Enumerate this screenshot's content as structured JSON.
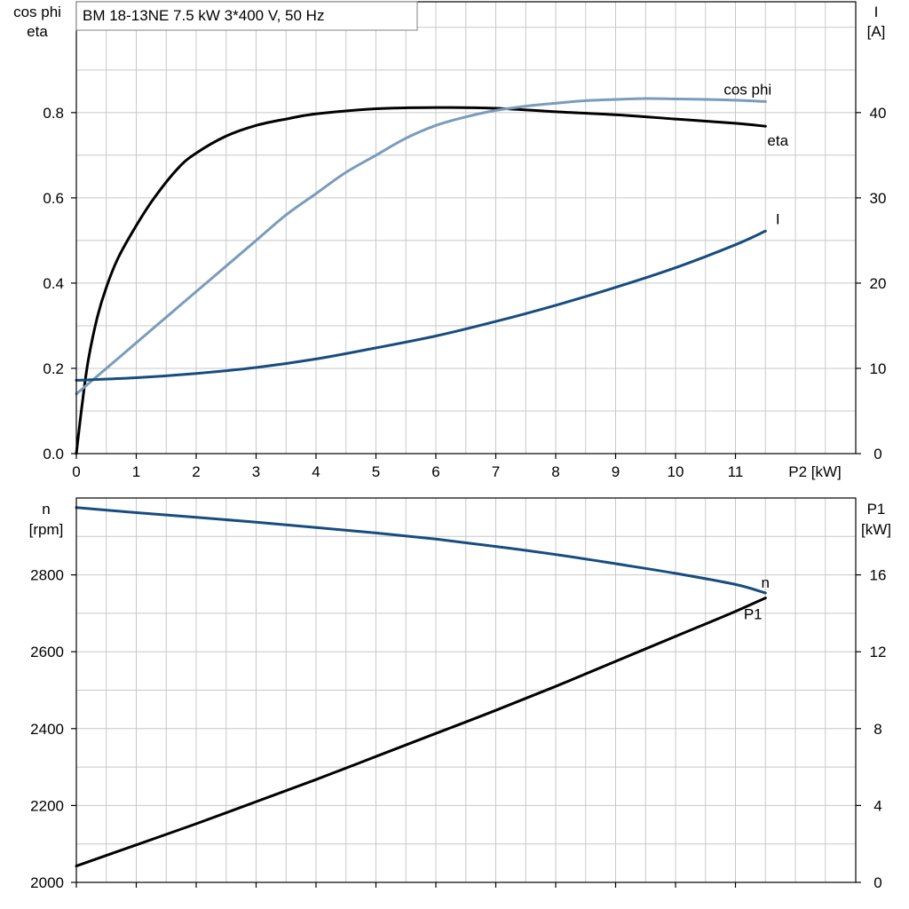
{
  "header": {
    "title_box": "BM  18-13NE   7.5 kW   3*400 V, 50 Hz"
  },
  "colors": {
    "eta": "#000000",
    "cos_phi": "#7a9cbc",
    "current": "#174c80",
    "speed": "#174c80",
    "p1": "#000000"
  },
  "chart_data": [
    {
      "type": "line",
      "name": "efficiency-power-factor-current",
      "xlabel": "P2 [kW]",
      "ylabel_left": [
        "cos phi",
        "eta"
      ],
      "ylabel_right": [
        "I",
        "[A]"
      ],
      "xlim": [
        0,
        13
      ],
      "ylim_left": [
        0,
        1.06
      ],
      "ylim_right": [
        0,
        53
      ],
      "x_ticks": [
        "0",
        "1",
        "2",
        "3",
        "4",
        "5",
        "6",
        "7",
        "8",
        "9",
        "10",
        "11"
      ],
      "y_left_ticks": [
        "0.0",
        "0.2",
        "0.4",
        "0.6",
        "0.8"
      ],
      "y_right_ticks": [
        "0",
        "10",
        "20",
        "30",
        "40"
      ],
      "grid": true,
      "series": [
        {
          "name": "eta",
          "axis": "left",
          "x": [
            0,
            0.1,
            0.2,
            0.35,
            0.5,
            0.7,
            1,
            1.3,
            1.7,
            2,
            2.5,
            3,
            3.5,
            4,
            5,
            6,
            7,
            8,
            9,
            10,
            11,
            11.5
          ],
          "y": [
            0,
            0.12,
            0.22,
            0.32,
            0.39,
            0.46,
            0.535,
            0.6,
            0.67,
            0.705,
            0.745,
            0.77,
            0.785,
            0.797,
            0.809,
            0.812,
            0.81,
            0.802,
            0.795,
            0.785,
            0.775,
            0.768
          ]
        },
        {
          "name": "cos phi",
          "axis": "left",
          "x": [
            0,
            0.5,
            1,
            1.5,
            2,
            2.5,
            3,
            3.5,
            4,
            4.5,
            5,
            5.5,
            6,
            6.5,
            7,
            7.5,
            8,
            8.5,
            9,
            9.5,
            10,
            10.5,
            11,
            11.5
          ],
          "y": [
            0.14,
            0.2,
            0.26,
            0.32,
            0.38,
            0.44,
            0.5,
            0.56,
            0.61,
            0.66,
            0.7,
            0.74,
            0.77,
            0.79,
            0.805,
            0.815,
            0.822,
            0.828,
            0.831,
            0.833,
            0.832,
            0.831,
            0.829,
            0.826
          ]
        },
        {
          "name": "I",
          "axis": "right",
          "x": [
            0,
            1,
            2,
            3,
            4,
            5,
            6,
            7,
            8,
            9,
            10,
            11,
            11.5
          ],
          "y": [
            8.6,
            8.9,
            9.4,
            10.1,
            11.1,
            12.4,
            13.8,
            15.5,
            17.4,
            19.5,
            21.8,
            24.5,
            26.1
          ]
        }
      ]
    },
    {
      "type": "line",
      "name": "speed-input-power",
      "xlabel": "",
      "ylabel_left": [
        "n",
        "[rpm]"
      ],
      "ylabel_right": [
        "P1",
        "[kW]"
      ],
      "xlim": [
        0,
        13
      ],
      "ylim_left": [
        2000,
        3000
      ],
      "ylim_right": [
        0,
        20
      ],
      "y_left_ticks": [
        "2000",
        "2200",
        "2400",
        "2600",
        "2800"
      ],
      "y_right_ticks": [
        "0",
        "4",
        "8",
        "12",
        "16"
      ],
      "grid": true,
      "series": [
        {
          "name": "n",
          "axis": "left",
          "x": [
            0,
            1,
            2,
            3,
            4,
            5,
            6,
            7,
            8,
            9,
            10,
            11,
            11.5
          ],
          "y": [
            2975,
            2962,
            2950,
            2937,
            2923,
            2909,
            2893,
            2874,
            2853,
            2829,
            2804,
            2775,
            2753
          ]
        },
        {
          "name": "P1",
          "axis": "right",
          "x": [
            0,
            1,
            2,
            3,
            4,
            5,
            6,
            7,
            8,
            9,
            10,
            11,
            11.5
          ],
          "y": [
            0.85,
            1.95,
            3.05,
            4.2,
            5.35,
            6.55,
            7.75,
            8.95,
            10.2,
            11.5,
            12.8,
            14.1,
            14.8
          ]
        }
      ]
    }
  ]
}
